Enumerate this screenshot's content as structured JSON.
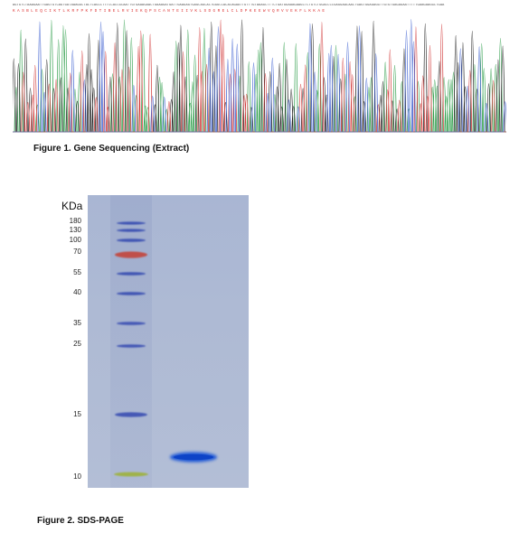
{
  "figure1": {
    "caption": "Figure 1. Gene Sequencing (Extract)",
    "nucleotides": "AGTGTCTAAAGAATTGAGTGTCAGTGATAAAGGCTACTCAGCCTTTCCACCGCAATTGTGAAAGAACTGAAAGATGATTGAAGAGTGAGCAGCACTGGGCCACACAGAATTGTTTGTAAAGCTTTCTGATGGAAAGAAGCTCTGTCTGGACCCCGAGGAACAACTGAGTGGAGAGGTTGTGTGAGAGAATTTTTGAAGAAGGCTGAA",
    "amino_acids": "KASBLEQCIKTLKRFPKFDTIBELRVIEKQPSCANTEIIVKLSDGRELCLDPKEEWVQRVVEKFLKKAE"
  },
  "figure2": {
    "caption": "Figure 2. SDS-PAGE",
    "axis_title": "KDa",
    "markers": [
      "180",
      "130",
      "100",
      "70",
      "55",
      "40",
      "35",
      "25",
      "15",
      "10"
    ]
  }
}
